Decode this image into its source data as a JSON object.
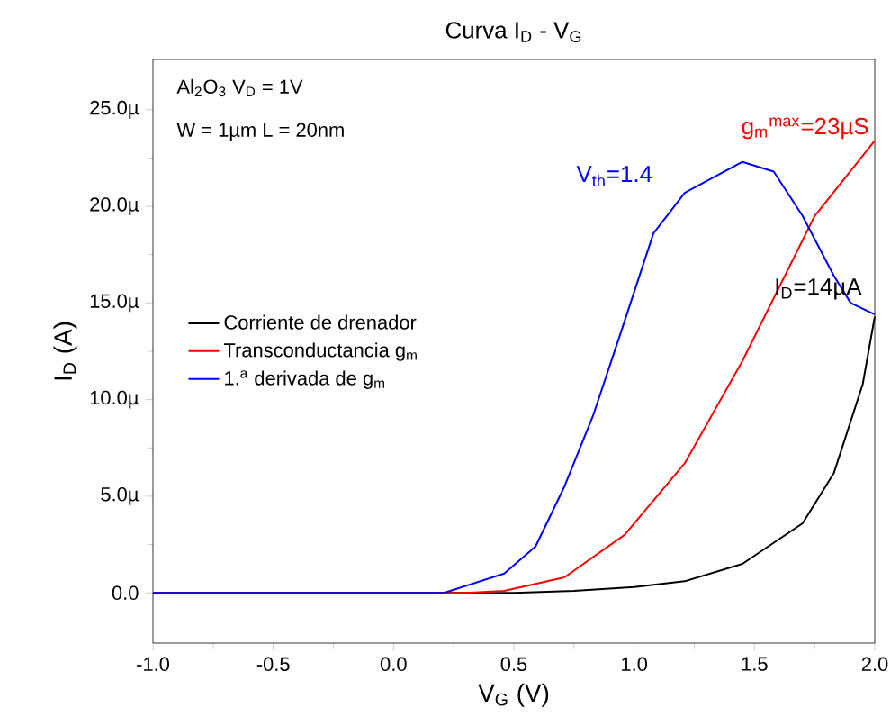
{
  "chart_data": {
    "type": "line",
    "title": "Curva I$_{D}$ - V$_{G}$",
    "xlabel": "V$_{G}$ (V)",
    "ylabel": "I$_{D}$ (A)",
    "xlim": [
      -1.0,
      2.0
    ],
    "ylim": [
      -2.6,
      27.6
    ],
    "xticks": [
      {
        "value": -1.0,
        "label": "-1.0"
      },
      {
        "value": -0.5,
        "label": "-0.5"
      },
      {
        "value": 0.0,
        "label": "0.0"
      },
      {
        "value": 0.5,
        "label": "0.5"
      },
      {
        "value": 1.0,
        "label": "1.0"
      },
      {
        "value": 1.5,
        "label": "1.5"
      },
      {
        "value": 2.0,
        "label": "2.0"
      }
    ],
    "yticks": [
      {
        "value": 0,
        "label": "0.0"
      },
      {
        "value": 5,
        "label": "5.0µ"
      },
      {
        "value": 10,
        "label": "10.0µ"
      },
      {
        "value": 15,
        "label": "15.0µ"
      },
      {
        "value": 20,
        "label": "20.0µ"
      },
      {
        "value": 25,
        "label": "25.0µ"
      }
    ],
    "legend": "left",
    "grid": false,
    "series": [
      {
        "name": "Corriente de drenador",
        "color": "#000000",
        "x": [
          -1.0,
          0.0,
          0.5,
          0.75,
          1.0,
          1.21,
          1.45,
          1.7,
          1.83,
          1.95,
          2.0
        ],
        "values": [
          0,
          0,
          0,
          0.1,
          0.3,
          0.6,
          1.5,
          3.6,
          6.2,
          10.8,
          14.3
        ]
      },
      {
        "name": "Transconductancia g$_{m}$",
        "color": "#ff0000",
        "x": [
          -1.0,
          0.0,
          0.3,
          0.46,
          0.71,
          0.96,
          1.21,
          1.45,
          1.75,
          2.0
        ],
        "values": [
          0,
          0,
          0,
          0.1,
          0.8,
          3.0,
          6.7,
          12.0,
          19.5,
          23.4
        ]
      },
      {
        "name": "1.$^{a}$ derivada de g$_{m}$",
        "color": "#0000ff",
        "x": [
          -1.0,
          0.0,
          0.21,
          0.46,
          0.59,
          0.71,
          0.83,
          0.94,
          1.08,
          1.21,
          1.45,
          1.58,
          1.7,
          1.83,
          1.9,
          2.0
        ],
        "values": [
          0,
          0,
          0,
          1.0,
          2.4,
          5.5,
          9.2,
          13.3,
          18.6,
          20.7,
          22.3,
          21.8,
          19.5,
          16.4,
          15.0,
          14.4
        ]
      }
    ],
    "annotations": [
      "Al$_{2}$O$_{3}$ V$_{D}$ = 1V",
      "W = 1µm L = 20nm",
      "V$_{th}$=1.4",
      "g$_{m}$$^{max}$=23µS",
      "I$_{D}$=14µA"
    ]
  }
}
